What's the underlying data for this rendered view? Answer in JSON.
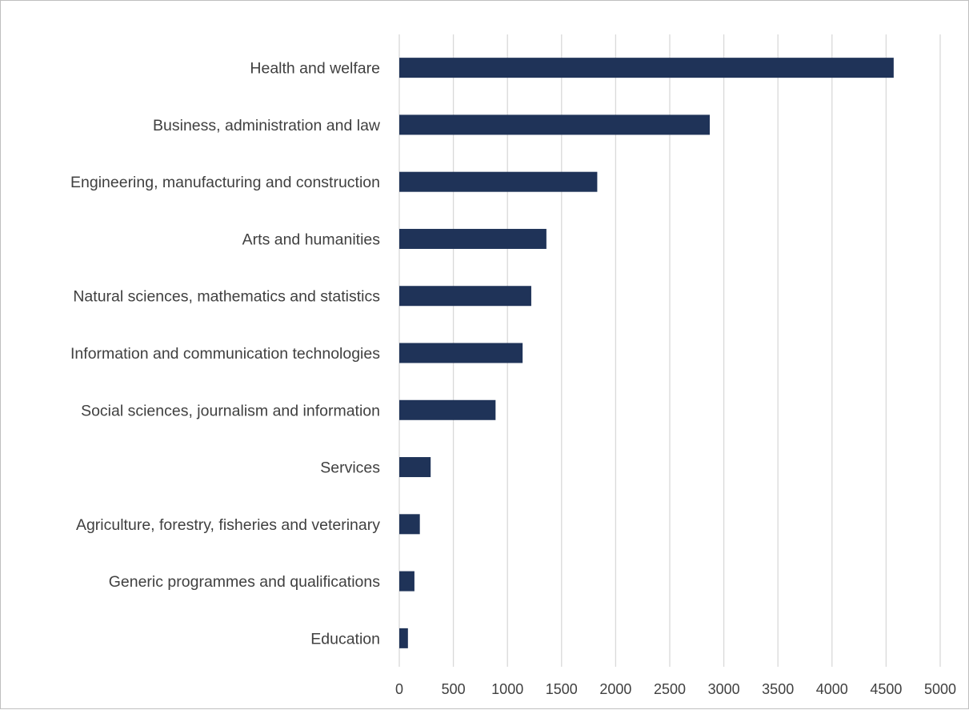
{
  "chart_data": {
    "type": "bar",
    "orientation": "horizontal",
    "title": "",
    "xlabel": "",
    "ylabel": "",
    "categories": [
      "Health and welfare",
      "Business, administration and law",
      "Engineering, manufacturing and construction",
      "Arts and humanities",
      "Natural sciences, mathematics and statistics",
      "Information and communication technologies",
      "Social sciences, journalism and information",
      "Services",
      "Agriculture, forestry, fisheries and veterinary",
      "Generic programmes and qualifications",
      "Education"
    ],
    "values": [
      4570,
      2870,
      1830,
      1360,
      1220,
      1140,
      890,
      290,
      190,
      140,
      80
    ],
    "xlim": [
      0,
      5000
    ],
    "xticks": [
      "0",
      "500",
      "1000",
      "1500",
      "2000",
      "2500",
      "3000",
      "3500",
      "4000",
      "4500",
      "5000"
    ],
    "grid": "vertical",
    "legend": "none",
    "bar_color": "#1f3358",
    "grid_color": "#d9d9d9",
    "text_color": "#404040"
  }
}
